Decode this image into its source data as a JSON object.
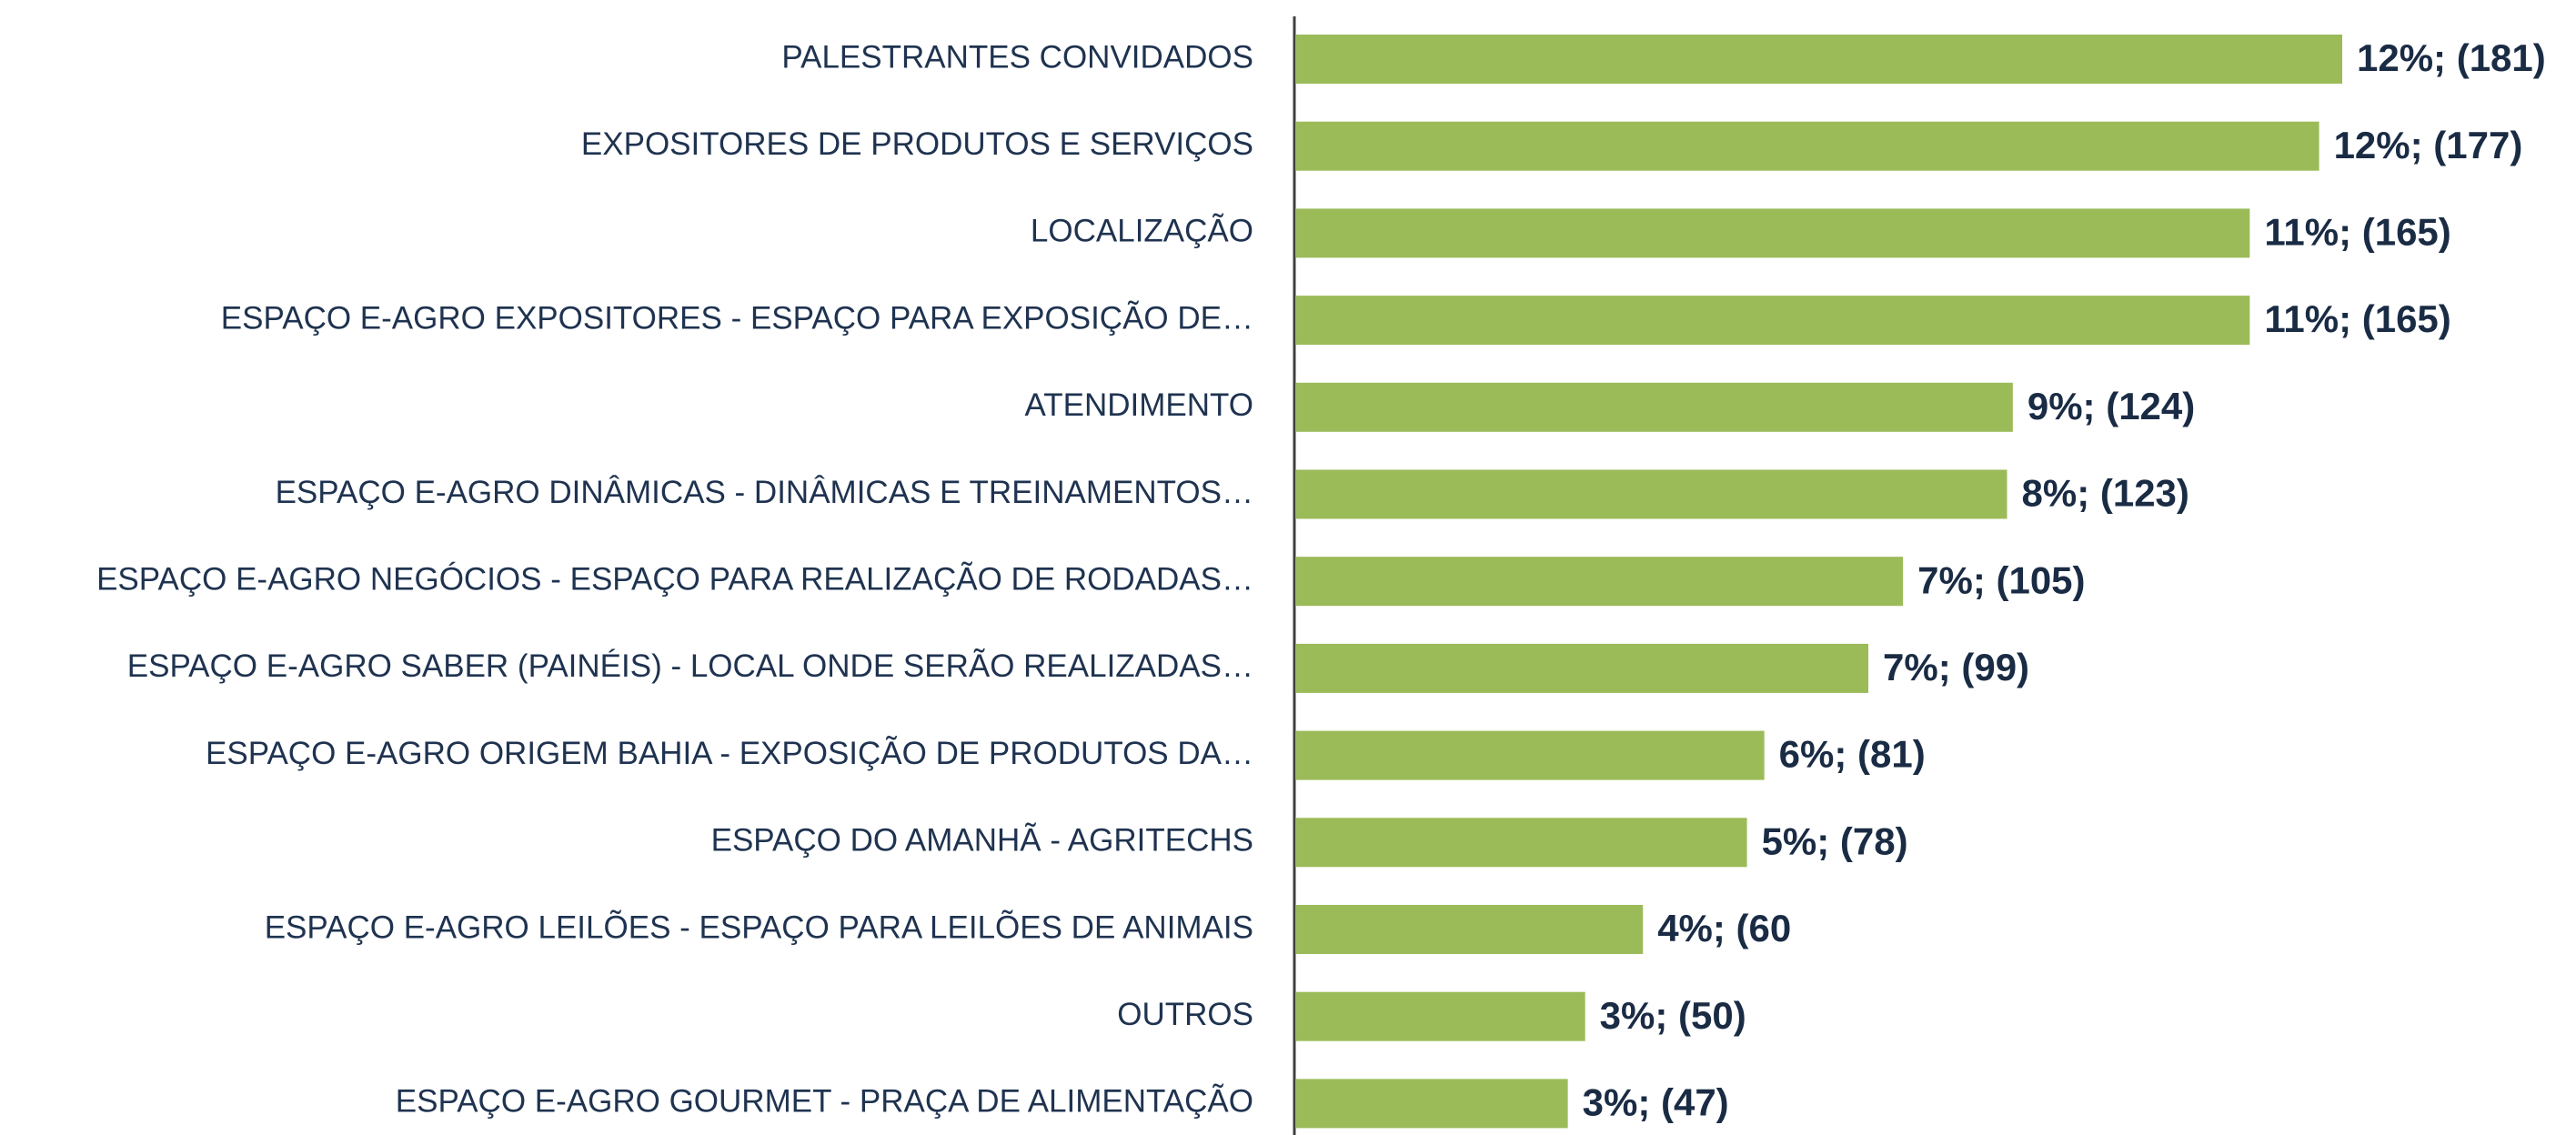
{
  "chart_data": {
    "type": "bar",
    "orientation": "horizontal",
    "categories": [
      "PALESTRANTES CONVIDADOS",
      "EXPOSITORES DE PRODUTOS E SERVIÇOS",
      "LOCALIZAÇÃO",
      "ESPAÇO E-AGRO EXPOSITORES - ESPAÇO PARA EXPOSIÇÃO DE…",
      "ATENDIMENTO",
      "ESPAÇO E-AGRO DINÂMICAS - DINÂMICAS E TREINAMENTOS…",
      "ESPAÇO E-AGRO NEGÓCIOS - ESPAÇO PARA REALIZAÇÃO DE RODADAS…",
      "ESPAÇO E-AGRO SABER (PAINÉIS) - LOCAL ONDE SERÃO REALIZADAS…",
      "ESPAÇO E-AGRO ORIGEM BAHIA - EXPOSIÇÃO DE PRODUTOS DA…",
      "ESPAÇO DO AMANHÃ - AGRITECHS",
      "ESPAÇO E-AGRO LEILÕES - ESPAÇO PARA LEILÕES DE ANIMAIS",
      "OUTROS",
      "ESPAÇO E-AGRO GOURMET - PRAÇA DE ALIMENTAÇÃO"
    ],
    "values": [
      181,
      177,
      165,
      165,
      124,
      123,
      105,
      99,
      81,
      78,
      60,
      50,
      47
    ],
    "value_labels": [
      "12%; (181)",
      "12%; (177)",
      "11%; (165)",
      "11%; (165)",
      "9%; (124)",
      "8%; (123)",
      "7%; (105)",
      "7%; (99)",
      "6%; (81)",
      "5%; (78)",
      "4%; (60",
      "3%; (50)",
      "3%; (47)"
    ],
    "color": "#9bbb59"
  }
}
